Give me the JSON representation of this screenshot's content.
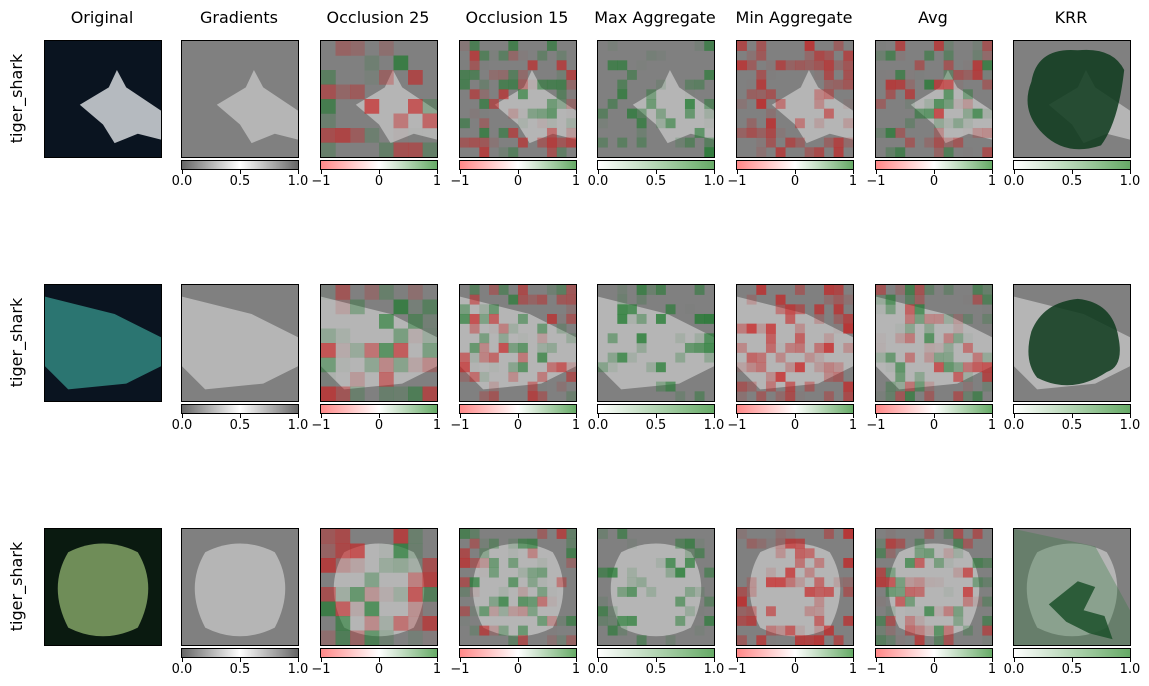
{
  "columns": [
    "Original",
    "Gradients",
    "Occlusion 25",
    "Occlusion 15",
    "Max Aggregate",
    "Min Aggregate",
    "Avg",
    "KRR"
  ],
  "rows": [
    {
      "label": "tiger_shark"
    },
    {
      "label": "tiger_shark"
    },
    {
      "label": "tiger_shark"
    }
  ],
  "colorbars": {
    "gradients": {
      "ticks": [
        "0.0",
        "0.5",
        "1.0"
      ],
      "gradient": [
        "#666666",
        "#ffffff",
        "#666666"
      ]
    },
    "diverging": {
      "ticks": [
        "−1",
        "0",
        "1"
      ],
      "gradient": [
        "#ff8888",
        "#ffffff",
        "#66aa66"
      ]
    },
    "greens": {
      "ticks": [
        "0.0",
        "0.5",
        "1.0"
      ],
      "gradient": [
        "#ffffff",
        "#66aa66"
      ]
    }
  },
  "colors": {
    "shark_fill": "#d8d8d8",
    "panel_gray": "#808080",
    "ocean_dark": "#0a1420",
    "krr_dark": "#0d3a1c"
  }
}
